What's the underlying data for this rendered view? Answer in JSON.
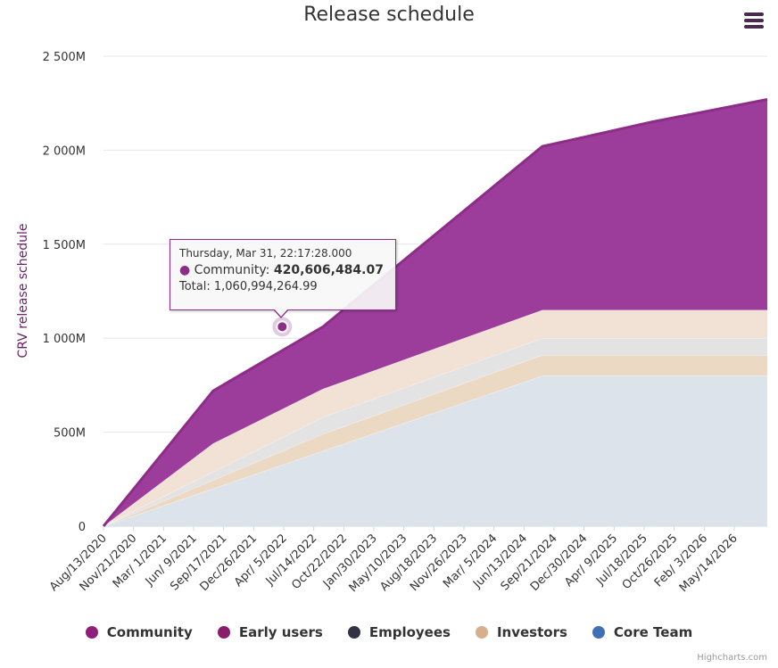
{
  "chart_data": {
    "type": "area",
    "stacking": "normal",
    "title": "Release schedule",
    "ylabel": "CRV release schedule",
    "ylim": [
      0,
      2500000000
    ],
    "yticks": [
      0,
      500000000,
      1000000000,
      1500000000,
      2000000000,
      2500000000
    ],
    "ytick_labels": [
      "0",
      "500M",
      "1 000M",
      "1 500M",
      "2 000M",
      "2 500M"
    ],
    "xlim": [
      "2020-08-13",
      "2026-09-01"
    ],
    "xtick_labels": [
      "Aug/13/2020",
      "Nov/21/2020",
      "Mar/ 1/2021",
      "Jun/ 9/2021",
      "Sep/17/2021",
      "Dec/26/2021",
      "Apr/ 5/2022",
      "Jul/14/2022",
      "Oct/22/2022",
      "Jan/30/2023",
      "May/10/2023",
      "Aug/18/2023",
      "Nov/26/2023",
      "Mar/ 5/2024",
      "Jun/13/2024",
      "Sep/21/2024",
      "Dec/30/2024",
      "Apr/ 9/2025",
      "Jul/18/2025",
      "Oct/26/2025",
      "Feb/ 3/2026",
      "May/14/2026"
    ],
    "xtick_dates": [
      "2020-08-13",
      "2020-11-21",
      "2021-03-01",
      "2021-06-09",
      "2021-09-17",
      "2021-12-26",
      "2022-04-05",
      "2022-07-14",
      "2022-10-22",
      "2023-01-30",
      "2023-05-10",
      "2023-08-18",
      "2023-11-26",
      "2024-03-05",
      "2024-06-13",
      "2024-09-21",
      "2024-12-30",
      "2025-04-09",
      "2025-07-18",
      "2025-10-26",
      "2026-02-03",
      "2026-05-14"
    ],
    "grid": true,
    "legend_placement": "bottom",
    "x": [
      "2020-08-13",
      "2021-08-13",
      "2022-08-13",
      "2024-08-13",
      "2025-08-13",
      "2026-09-01"
    ],
    "series": [
      {
        "name": "Core Team",
        "color": "#dde3ea",
        "values": [
          0,
          200000000,
          400000000,
          800000000,
          800000000,
          800000000
        ]
      },
      {
        "name": "Investors",
        "color": "#ecd9c4",
        "values": [
          0,
          45000000,
          90000000,
          110000000,
          110000000,
          110000000
        ]
      },
      {
        "name": "Employees",
        "color": "#e3e3e3",
        "values": [
          0,
          45000000,
          90000000,
          90000000,
          90000000,
          90000000
        ]
      },
      {
        "name": "Early users",
        "color": "#f2e1d5",
        "values": [
          0,
          150000000,
          150000000,
          150000000,
          150000000,
          150000000
        ]
      },
      {
        "name": "Community",
        "color": "#9c3d9c",
        "values": [
          0,
          280000000,
          330000000,
          870000000,
          1000000000,
          1120000000
        ]
      }
    ],
    "highlight_point": {
      "series": "Community",
      "x": "2022-03-31",
      "total": 1060994264.99
    }
  },
  "tooltip": {
    "date": "Thursday, Mar 31, 22:17:28.000",
    "series_label": "Community: ",
    "series_value": "420,606,484.07",
    "total_text": "Total: 1,060,994,264.99"
  },
  "legend": [
    {
      "label": "Community",
      "color": "#8d1f7a"
    },
    {
      "label": "Early users",
      "color": "#8a1c6c"
    },
    {
      "label": "Employees",
      "color": "#323246"
    },
    {
      "label": "Investors",
      "color": "#d6b08c"
    },
    {
      "label": "Core Team",
      "color": "#3f6fb5"
    }
  ],
  "credits": "Highcharts.com",
  "colors": {
    "axis_text": "#333333",
    "grid": "#e6e6e6",
    "ylabel": "#6b1e6b"
  }
}
